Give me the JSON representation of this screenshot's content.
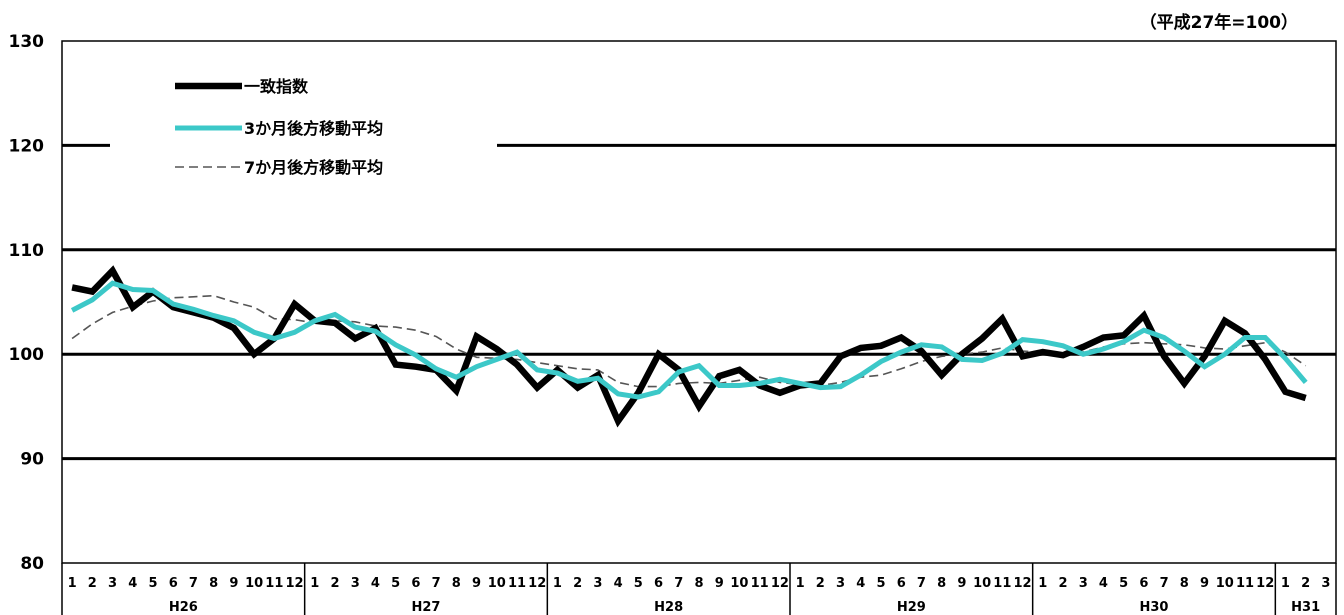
{
  "note": "（平成27年=100）",
  "chart_data": {
    "type": "line",
    "title": "",
    "xlabel": "",
    "ylabel": "",
    "ylim": [
      80,
      130
    ],
    "yticks": [
      80,
      90,
      100,
      110,
      120,
      130
    ],
    "grid": "horizontal",
    "legend_position": "top-left",
    "month_labels": [
      "1",
      "2",
      "3",
      "4",
      "5",
      "6",
      "7",
      "8",
      "9",
      "10",
      "11",
      "12",
      "1",
      "2",
      "3",
      "4",
      "5",
      "6",
      "7",
      "8",
      "9",
      "10",
      "11",
      "12",
      "1",
      "2",
      "3",
      "4",
      "5",
      "6",
      "7",
      "8",
      "9",
      "10",
      "11",
      "12",
      "1",
      "2",
      "3",
      "4",
      "5",
      "6",
      "7",
      "8",
      "9",
      "10",
      "11",
      "12",
      "1",
      "2",
      "3",
      "4",
      "5",
      "6",
      "7",
      "8",
      "9",
      "10",
      "11",
      "12",
      "1",
      "2",
      "3"
    ],
    "year_groups": [
      {
        "label": "H26",
        "months": 12
      },
      {
        "label": "H27",
        "months": 12
      },
      {
        "label": "H28",
        "months": 12
      },
      {
        "label": "H29",
        "months": 12
      },
      {
        "label": "H30",
        "months": 12
      },
      {
        "label": "H31",
        "months": 3
      }
    ],
    "series": [
      {
        "name": "一致指数",
        "color": "#000000",
        "style": "solid-thick",
        "values": [
          106.4,
          106.0,
          108.0,
          104.5,
          106.0,
          104.5,
          104.0,
          103.5,
          102.5,
          100.0,
          101.5,
          104.8,
          103.2,
          103.0,
          101.5,
          102.5,
          99.0,
          98.8,
          98.5,
          96.5,
          101.7,
          100.5,
          99.0,
          96.8,
          98.5,
          96.8,
          98.0,
          93.6,
          96.3,
          100.0,
          98.5,
          95.0,
          97.9,
          98.5,
          97.0,
          96.3,
          97.0,
          97.2,
          99.8,
          100.6,
          100.8,
          101.6,
          100.3,
          98.0,
          100.0,
          101.5,
          103.4,
          99.8,
          100.2,
          99.9,
          100.7,
          101.6,
          101.8,
          103.7,
          99.8,
          97.2,
          99.8,
          103.2,
          102.0,
          99.5,
          96.4,
          95.8
        ]
      },
      {
        "name": "3か月後方移動平均",
        "color": "#3cc8c8",
        "style": "solid",
        "values": [
          104.2,
          105.2,
          106.8,
          106.2,
          106.1,
          104.8,
          104.3,
          103.7,
          103.2,
          102.1,
          101.5,
          102.1,
          103.2,
          103.8,
          102.6,
          102.2,
          100.9,
          99.9,
          98.6,
          97.8,
          98.8,
          99.5,
          100.2,
          98.5,
          98.2,
          97.4,
          97.7,
          96.2,
          95.9,
          96.4,
          98.3,
          98.9,
          97.0,
          97.0,
          97.2,
          97.6,
          97.2,
          96.8,
          96.9,
          98.0,
          99.3,
          100.2,
          100.9,
          100.7,
          99.5,
          99.4,
          100.1,
          101.4,
          101.2,
          100.8,
          100.0,
          100.5,
          101.2,
          102.3,
          101.6,
          100.3,
          98.8,
          100.0,
          101.6,
          101.6,
          99.6,
          97.3
        ]
      },
      {
        "name": "7か月後方移動平均",
        "color": "#555555",
        "style": "dashed",
        "values": [
          101.5,
          102.9,
          104.0,
          104.6,
          105.1,
          105.4,
          105.5,
          105.6,
          105.0,
          104.5,
          103.4,
          103.3,
          103.0,
          103.2,
          103.1,
          102.7,
          102.6,
          102.3,
          101.7,
          100.5,
          99.7,
          99.6,
          99.5,
          99.2,
          98.9,
          98.6,
          98.5,
          97.3,
          96.9,
          96.9,
          97.2,
          97.3,
          97.2,
          97.5,
          97.8,
          97.3,
          97.1,
          97.0,
          97.3,
          97.8,
          98.0,
          98.6,
          99.3,
          99.8,
          100.0,
          100.2,
          100.6,
          100.3,
          100.2,
          100.1,
          100.2,
          100.7,
          101.0,
          101.1,
          101.0,
          100.9,
          100.6,
          100.5,
          100.8,
          101.1,
          100.2,
          98.9
        ]
      }
    ]
  }
}
